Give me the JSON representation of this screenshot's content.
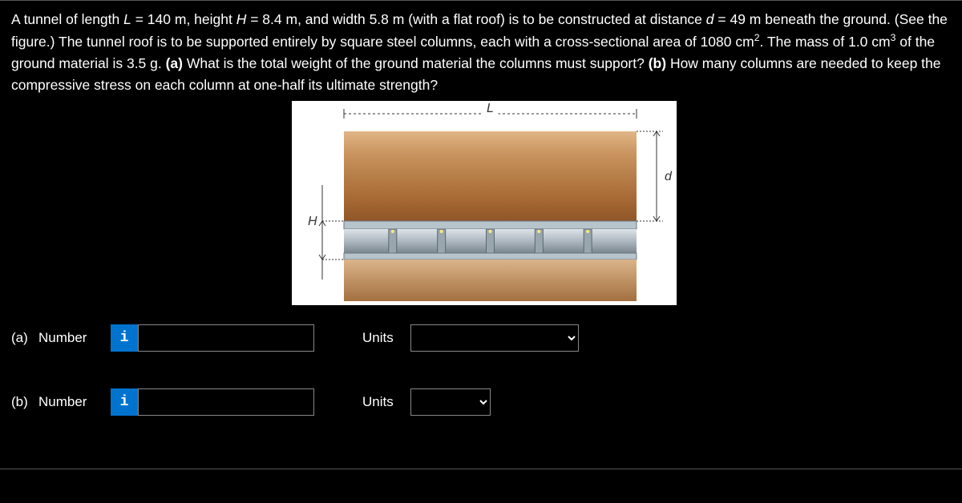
{
  "problem": {
    "html": "A tunnel of length <i>L</i> = 140 m, height <i>H</i> = 8.4 m, and width 5.8 m (with a flat roof) is to be constructed at distance <i>d</i> = 49 m beneath the ground. (See the figure.) The tunnel roof is to be supported entirely by square steel columns, each with a cross-sectional area of 1080 cm<sup>2</sup>. The mass of 1.0 cm<sup>3</sup> of the ground material is 3.5 g. <b>(a)</b> What is the total weight of the ground material the columns must support? <b>(b)</b> How many columns are needed to keep the compressive stress on each column at one-half its ultimate strength?"
  },
  "figure": {
    "bg": "#ffffff",
    "labels": {
      "L": "L",
      "H": "H",
      "d": "d"
    },
    "label_color": "#333333",
    "label_fontsize": 16,
    "ground_colors": [
      "#e0b585",
      "#c9945f",
      "#b77e48",
      "#a86a35",
      "#8f5628"
    ],
    "floor_top_color": "#dbb48a",
    "floor_bot_color": "#a3703f",
    "roof_color": "#b8c4cc",
    "roof_edge": "#6a7882",
    "column_color": "#9aa6ae",
    "column_edge": "#5b6870",
    "dim_line_color": "#333333",
    "n_columns": 5
  },
  "answers": {
    "a": {
      "part": "(a)",
      "number_label": "Number",
      "units_label": "Units",
      "value": "",
      "units_selected": ""
    },
    "b": {
      "part": "(b)",
      "number_label": "Number",
      "units_label": "Units",
      "value": "",
      "units_selected": ""
    }
  },
  "icons": {
    "info": "i"
  },
  "colors": {
    "bg": "#000000",
    "text": "#ffffff",
    "accent": "#0073cf",
    "input_border": "#888888"
  }
}
